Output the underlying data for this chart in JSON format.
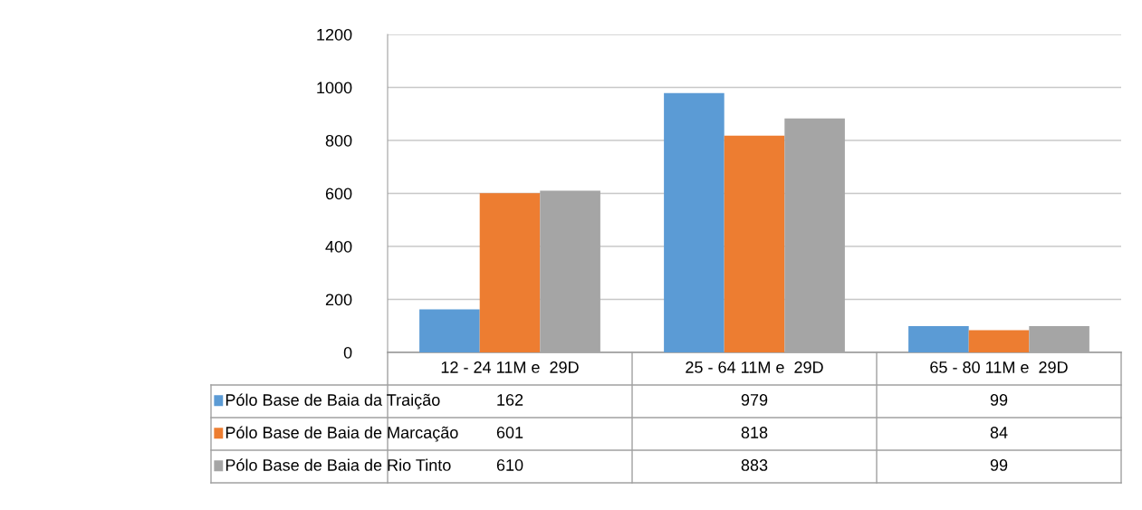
{
  "chart_data": {
    "type": "bar",
    "categories": [
      "12 - 24 11M e  29D",
      "25 - 64 11M e  29D",
      "65 - 80 11M e  29D"
    ],
    "series": [
      {
        "name": "Pólo Base de Baia da Traição",
        "color": "#5b9bd5",
        "values": [
          162,
          979,
          99
        ]
      },
      {
        "name": "Pólo Base de Baia de Marcação",
        "color": "#ed7d31",
        "values": [
          601,
          818,
          84
        ]
      },
      {
        "name": "Pólo Base de Baia de Rio Tinto",
        "color": "#a5a5a5",
        "values": [
          610,
          883,
          99
        ]
      }
    ],
    "ylim": [
      0,
      1200
    ],
    "yticks": [
      0,
      200,
      400,
      600,
      800,
      1000,
      1200
    ],
    "grid": "y",
    "data_labels": true,
    "legend": "bottom left"
  }
}
